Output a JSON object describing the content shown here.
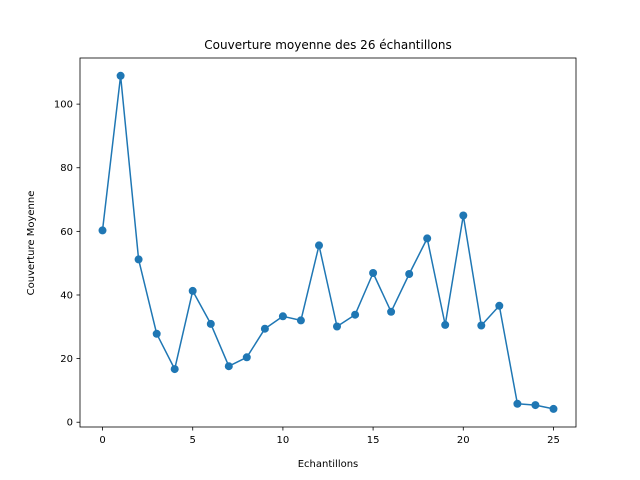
{
  "chart_data": {
    "type": "line",
    "title": "Couverture moyenne des 26 échantillons",
    "xlabel": "Echantillons",
    "ylabel": "Couverture Moyenne",
    "xlim": [
      -1.25,
      26.25
    ],
    "ylim": [
      -1.5,
      114.5
    ],
    "xticks": [
      0,
      5,
      10,
      15,
      20,
      25
    ],
    "yticks": [
      0,
      20,
      40,
      60,
      80,
      100
    ],
    "grid": false,
    "line_color": "#1f77b4",
    "series": [
      {
        "x": [
          0,
          1,
          2,
          3,
          4,
          5,
          6,
          7,
          8,
          9,
          10,
          11,
          12,
          13,
          14,
          15,
          16,
          17,
          18,
          19,
          20,
          21,
          22,
          23,
          24,
          25
        ],
        "values": [
          60.3,
          108.9,
          51.2,
          27.8,
          16.7,
          41.3,
          30.9,
          17.6,
          20.4,
          29.4,
          33.3,
          32.0,
          55.6,
          30.1,
          33.8,
          46.9,
          34.7,
          46.6,
          57.8,
          30.6,
          65.0,
          30.4,
          36.6,
          5.8,
          5.4,
          4.2
        ]
      }
    ]
  }
}
